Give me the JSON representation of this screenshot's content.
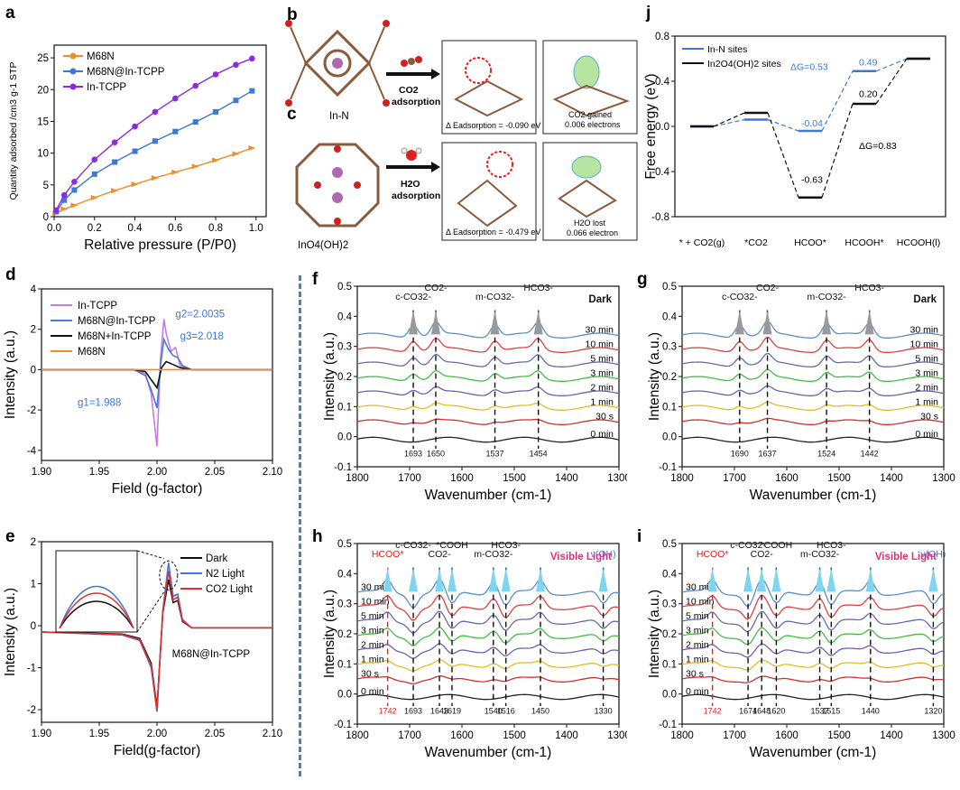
{
  "figure": {
    "panel_letters": [
      "a",
      "b",
      "c",
      "d",
      "e",
      "f",
      "g",
      "h",
      "i",
      "j"
    ],
    "labels": {
      "in_n": "In-N",
      "ino4": "InO4(OH)2",
      "co2_adsorption_1": "CO2",
      "co2_adsorption_2": "adsorption",
      "h2o_adsorption_1": "H2O",
      "h2o_adsorption_2": "adsorption",
      "e_ads_co2": "Δ Eadsorption = -0.090 eV",
      "e_ads_h2o": "Δ Eadsorption = -0.479 eV",
      "co2_gained_1": "CO2 gained",
      "co2_gained_2": "0.006 electrons",
      "h2o_lost_1": "H2O lost",
      "h2o_lost_2": "0.066 electron"
    },
    "e_inset_label": "M68N@In-TCPP",
    "f_mode": "Dark",
    "g_mode": "Dark",
    "h_mode": "Visible Light",
    "i_mode": "Visible Light"
  },
  "chart_data": [
    {
      "panel": "a",
      "type": "scatter",
      "xlabel": "Relative pressure (P/P0)",
      "ylabel": "Quantity adsorbed /cm3 g-1 STP",
      "xlim": [
        0,
        1.05
      ],
      "ylim": [
        0,
        27
      ],
      "xticks": [
        "0.0",
        "0.2",
        "0.4",
        "0.6",
        "0.8",
        "1.0"
      ],
      "yticks": [
        "0",
        "5",
        "10",
        "15",
        "20",
        "25"
      ],
      "legend_position": "top-left",
      "series": [
        {
          "name": "M68N",
          "color": "#f28c28",
          "marker": "triangle",
          "x": [
            0.01,
            0.05,
            0.1,
            0.2,
            0.3,
            0.4,
            0.5,
            0.6,
            0.7,
            0.8,
            0.9,
            0.98
          ],
          "y": [
            0.5,
            1.2,
            1.8,
            3.0,
            4.1,
            5.1,
            6.1,
            7.0,
            7.9,
            8.9,
            9.9,
            10.8
          ]
        },
        {
          "name": "M68N@In-TCPP",
          "color": "#3b78d8",
          "marker": "square",
          "x": [
            0.01,
            0.05,
            0.1,
            0.2,
            0.3,
            0.4,
            0.5,
            0.6,
            0.7,
            0.8,
            0.9,
            0.98
          ],
          "y": [
            0.8,
            2.6,
            4.2,
            6.7,
            8.6,
            10.3,
            11.9,
            13.4,
            14.9,
            16.5,
            18.3,
            19.8
          ]
        },
        {
          "name": "In-TCPP",
          "color": "#8a2be2",
          "marker": "circle",
          "x": [
            0.01,
            0.05,
            0.1,
            0.2,
            0.3,
            0.4,
            0.5,
            0.6,
            0.7,
            0.8,
            0.9,
            0.98
          ],
          "y": [
            1.0,
            3.4,
            5.5,
            9.0,
            11.7,
            14.2,
            16.5,
            18.6,
            20.6,
            22.4,
            23.9,
            24.9
          ]
        }
      ]
    },
    {
      "panel": "d",
      "type": "line",
      "xlabel": "Field (g-factor)",
      "ylabel": "Intensity (a.u.)",
      "xlim": [
        1.9,
        2.1
      ],
      "ylim": [
        -4.5,
        4
      ],
      "xticks": [
        "1.90",
        "1.95",
        "2.00",
        "2.05",
        "2.10"
      ],
      "yticks": [
        "-4",
        "-2",
        "0",
        "2",
        "4"
      ],
      "legend_position": "top-left",
      "annotations": [
        "g1=1.988",
        "g2=2.0035",
        "g3=2.018"
      ],
      "series": [
        {
          "name": "In-TCPP",
          "color": "#c77ddf",
          "x": [
            1.9,
            1.98,
            1.99,
            1.995,
            2.0,
            2.003,
            2.006,
            2.008,
            2.012,
            2.016,
            2.02,
            2.03,
            2.1
          ],
          "y": [
            0,
            0,
            -0.2,
            -1.2,
            -3.8,
            0.5,
            2.5,
            1.8,
            0.9,
            1.1,
            0.2,
            0,
            0
          ]
        },
        {
          "name": "M68N@In-TCPP",
          "color": "#4a7bd0",
          "x": [
            1.9,
            1.98,
            1.99,
            1.995,
            2.0,
            2.003,
            2.006,
            2.01,
            2.014,
            2.018,
            2.022,
            2.03,
            2.1
          ],
          "y": [
            0,
            0,
            -0.3,
            -1.0,
            -1.9,
            0.2,
            1.5,
            1.0,
            0.7,
            0.6,
            0.2,
            0,
            0
          ]
        },
        {
          "name": "M68N+In-TCPP",
          "color": "#111111",
          "x": [
            1.9,
            1.98,
            1.99,
            1.995,
            2.0,
            2.004,
            2.008,
            2.014,
            2.02,
            2.03,
            2.1
          ],
          "y": [
            0,
            0,
            -0.1,
            -0.5,
            -0.9,
            0.1,
            0.4,
            0.25,
            0.1,
            0,
            0
          ]
        },
        {
          "name": "M68N",
          "color": "#f28c28",
          "x": [
            1.9,
            2.1
          ],
          "y": [
            0,
            0
          ]
        }
      ]
    },
    {
      "panel": "e",
      "type": "line",
      "xlabel": "Field(g-factor)",
      "ylabel": "Intensity (a.u.)",
      "xlim": [
        1.9,
        2.1
      ],
      "ylim": [
        -2.3,
        2.0
      ],
      "xticks": [
        "1.90",
        "1.95",
        "2.00",
        "2.05",
        "2.10"
      ],
      "yticks": [
        "-2",
        "-1",
        "0",
        "1",
        "2"
      ],
      "legend_position": "top-right",
      "series": [
        {
          "name": "Dark",
          "color": "#111111",
          "x": [
            1.9,
            1.97,
            1.985,
            1.995,
            2.0,
            2.005,
            2.01,
            2.014,
            2.018,
            2.022,
            2.03,
            2.1
          ],
          "y": [
            -0.15,
            -0.2,
            -0.3,
            -0.9,
            -1.95,
            0.3,
            1.1,
            0.55,
            0.6,
            0.1,
            -0.05,
            -0.05
          ]
        },
        {
          "name": "N2 Light",
          "color": "#3b78d8",
          "x": [
            1.9,
            1.97,
            1.985,
            1.995,
            2.0,
            2.005,
            2.01,
            2.014,
            2.018,
            2.022,
            2.03,
            2.1
          ],
          "y": [
            -0.15,
            -0.22,
            -0.35,
            -1.0,
            -2.05,
            0.35,
            1.5,
            0.7,
            0.75,
            0.15,
            -0.05,
            -0.05
          ]
        },
        {
          "name": "CO2 Light",
          "color": "#e03030",
          "x": [
            1.9,
            1.97,
            1.985,
            1.995,
            2.0,
            2.005,
            2.01,
            2.014,
            2.018,
            2.022,
            2.03,
            2.1
          ],
          "y": [
            -0.15,
            -0.21,
            -0.33,
            -0.95,
            -2.0,
            0.33,
            1.3,
            0.62,
            0.68,
            0.12,
            -0.05,
            -0.05
          ]
        }
      ]
    },
    {
      "panel": "f",
      "type": "line",
      "xlabel": "Wavenumber (cm-1)",
      "ylabel": "Intensity (a.u.)",
      "xlim": [
        1800,
        1300
      ],
      "ylim": [
        -0.1,
        0.5
      ],
      "xticks": [
        "1800",
        "1700",
        "1600",
        "1500",
        "1400",
        "1300"
      ],
      "yticks": [
        "-0.1",
        "0.0",
        "0.1",
        "0.2",
        "0.3",
        "0.4",
        "0.5"
      ],
      "time_labels": [
        "30 min",
        "10 min",
        "5 min",
        "3 min",
        "2 min",
        "1 min",
        "30 s",
        "0 min"
      ],
      "peak_labels": [
        "c-CO32-",
        "CO2-",
        "m-CO32-",
        "HCO3-"
      ],
      "peak_positions": [
        1693,
        1650,
        1537,
        1454
      ],
      "peak_numbers": [
        "1693",
        "1650",
        "1537",
        "1454"
      ]
    },
    {
      "panel": "g",
      "type": "line",
      "xlabel": "Wavenumber (cm-1)",
      "ylabel": "Intensity (a.u.)",
      "xlim": [
        1800,
        1300
      ],
      "ylim": [
        -0.1,
        0.5
      ],
      "xticks": [
        "1800",
        "1700",
        "1600",
        "1500",
        "1400",
        "1300"
      ],
      "yticks": [
        "-0.1",
        "0.0",
        "0.1",
        "0.2",
        "0.3",
        "0.4",
        "0.5"
      ],
      "time_labels": [
        "30 min",
        "10 min",
        "5 min",
        "3 min",
        "2 min",
        "1 min",
        "30 s",
        "0 min"
      ],
      "peak_labels": [
        "c-CO32-",
        "CO2-",
        "m-CO32-",
        "HCO3-"
      ],
      "peak_positions": [
        1690,
        1637,
        1524,
        1442
      ],
      "peak_numbers": [
        "1690",
        "1637",
        "1524",
        "1442"
      ]
    },
    {
      "panel": "h",
      "type": "line",
      "xlabel": "Wavenumber (cm-1)",
      "ylabel": "Intensity (a.u.)",
      "xlim": [
        1800,
        1300
      ],
      "ylim": [
        -0.1,
        0.5
      ],
      "xticks": [
        "1800",
        "1700",
        "1600",
        "1500",
        "1400",
        "1300"
      ],
      "yticks": [
        "-0.1",
        "0.0",
        "0.1",
        "0.2",
        "0.3",
        "0.4",
        "0.5"
      ],
      "time_labels": [
        "30 min",
        "10 min",
        "5 min",
        "3 min",
        "2 min",
        "1 min",
        "30 s",
        "0 min"
      ],
      "peak_labels": [
        "HCOO*",
        "c-CO32-",
        "CO2-",
        "*COOH",
        "m-CO32-",
        "HCO3-",
        "ν(OH)"
      ],
      "peak_positions": [
        1742,
        1693,
        1643,
        1619,
        1540,
        1516,
        1450,
        1330
      ],
      "peak_numbers": [
        "1742",
        "1693",
        "1643",
        "1619",
        "1540",
        "1516",
        "1450",
        "1330"
      ]
    },
    {
      "panel": "i",
      "type": "line",
      "xlabel": "Wavenumber (cm-1)",
      "ylabel": "Intensity (a.u.)",
      "xlim": [
        1800,
        1300
      ],
      "ylim": [
        -0.1,
        0.5
      ],
      "xticks": [
        "1800",
        "1700",
        "1600",
        "1500",
        "1400",
        "1300"
      ],
      "yticks": [
        "-0.1",
        "0.0",
        "0.1",
        "0.2",
        "0.3",
        "0.4",
        "0.5"
      ],
      "time_labels": [
        "30 min",
        "10 min",
        "5 min",
        "3 min",
        "2 min",
        "1 min",
        "30 s",
        "0 min"
      ],
      "peak_labels": [
        "HCOO*",
        "c-CO32-",
        "CO2-",
        "*COOH",
        "m-CO32-",
        "HCO3-",
        "ν(OH)"
      ],
      "peak_positions": [
        1742,
        1674,
        1648,
        1620,
        1537,
        1515,
        1440,
        1320
      ],
      "peak_numbers": [
        "1742",
        "1674",
        "1648",
        "1620",
        "1537",
        "1515",
        "1440",
        "1320"
      ]
    },
    {
      "panel": "j",
      "type": "line",
      "ylabel": "Free energy (eV)",
      "ylim": [
        -0.8,
        0.8
      ],
      "yticks": [
        "-0.8",
        "-0.4",
        "0.0",
        "0.4",
        "0.8"
      ],
      "categories": [
        "* + CO2(g)",
        "*CO2",
        "HCOO*",
        "HCOOH*",
        "HCOOH(l)"
      ],
      "legend_position": "top-left",
      "series": [
        {
          "name": "In-N sites",
          "color": "#3b78d8",
          "values": [
            0.0,
            0.06,
            -0.04,
            0.49,
            0.6
          ]
        },
        {
          "name": "In2O4(OH)2 sites",
          "color": "#111111",
          "values": [
            0.0,
            0.12,
            -0.63,
            0.2,
            0.6
          ]
        }
      ],
      "annotations": [
        "ΔG=0.53",
        "0.49",
        "-0.04",
        "0.20",
        "ΔG=0.83",
        "-0.63"
      ]
    }
  ]
}
